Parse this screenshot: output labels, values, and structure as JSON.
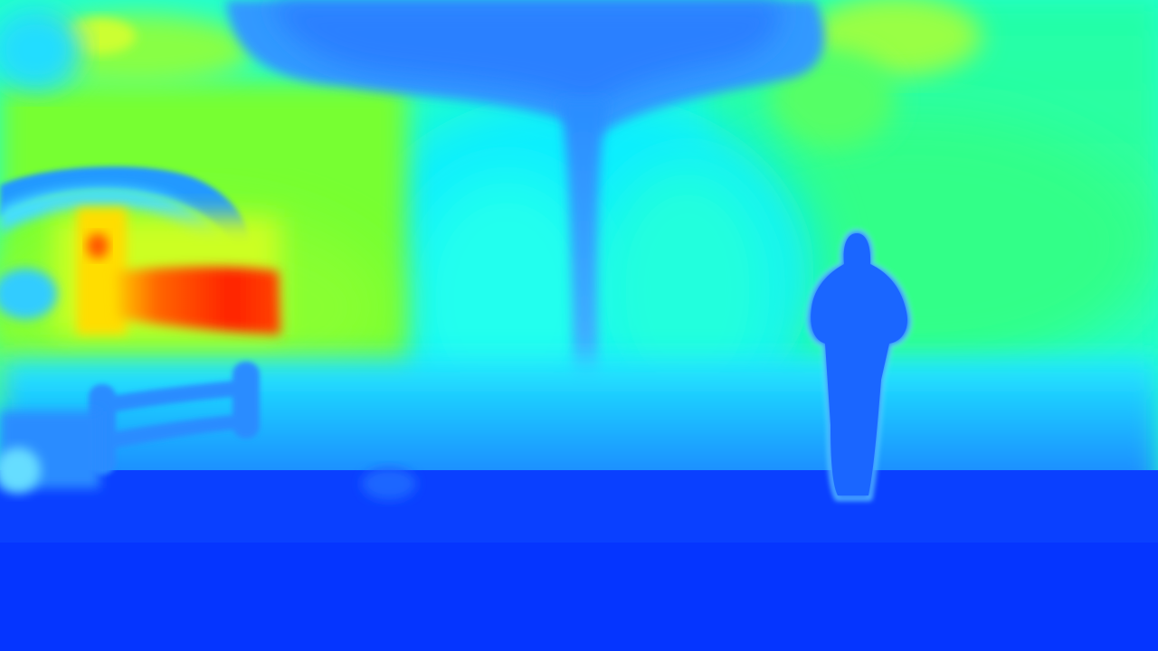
{
  "image": {
    "kind": "depth-map",
    "colormap": "jet",
    "palette": {
      "far_blue": "#0033ff",
      "mid_blue": "#1a66ff",
      "sky_blue": "#33aaff",
      "cyan": "#00eeff",
      "aqua": "#22ffcc",
      "green": "#33ff77",
      "yellow_green": "#99ff33",
      "yellow": "#ffee00",
      "orange": "#ff8800",
      "red": "#ff2200"
    },
    "regions": [
      "ground",
      "background-wall",
      "left-vehicle",
      "fence",
      "tree-trunk",
      "tree-canopy",
      "person"
    ]
  }
}
